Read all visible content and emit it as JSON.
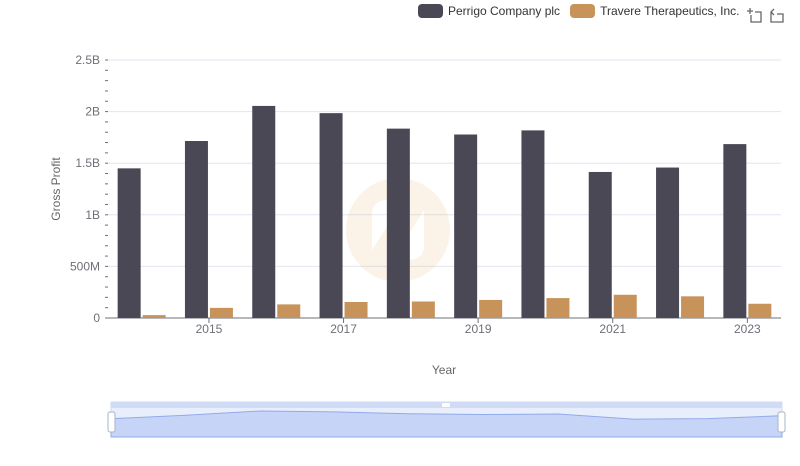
{
  "chart_data": {
    "type": "bar",
    "x": [
      2014,
      2015,
      2016,
      2017,
      2018,
      2019,
      2020,
      2021,
      2022,
      2023
    ],
    "tick_labels": [
      "2015",
      "2017",
      "2019",
      "2021",
      "2023"
    ],
    "series": [
      {
        "name": "Perrigo Company plc",
        "color": "#494854",
        "values": [
          1450000000,
          1715000000,
          2055000000,
          1985000000,
          1835000000,
          1778000000,
          1818000000,
          1415000000,
          1458000000,
          1685000000
        ]
      },
      {
        "name": "Travere Therapeutics, Inc.",
        "color": "#c8935a",
        "values": [
          28000000,
          98000000,
          132000000,
          155000000,
          160000000,
          175000000,
          193000000,
          225000000,
          210000000,
          138000000
        ]
      }
    ],
    "xlabel": "Year",
    "ylabel": "Gross Profit",
    "ylim": [
      0,
      2500000000
    ],
    "y_ticks": [
      "0",
      "500M",
      "1B",
      "1.5B",
      "2B",
      "2.5B"
    ],
    "grid": true,
    "legend_position": "top-right"
  },
  "toolbox": {
    "zoom_icon": "data-zoom-icon",
    "restore_icon": "restore-icon"
  }
}
